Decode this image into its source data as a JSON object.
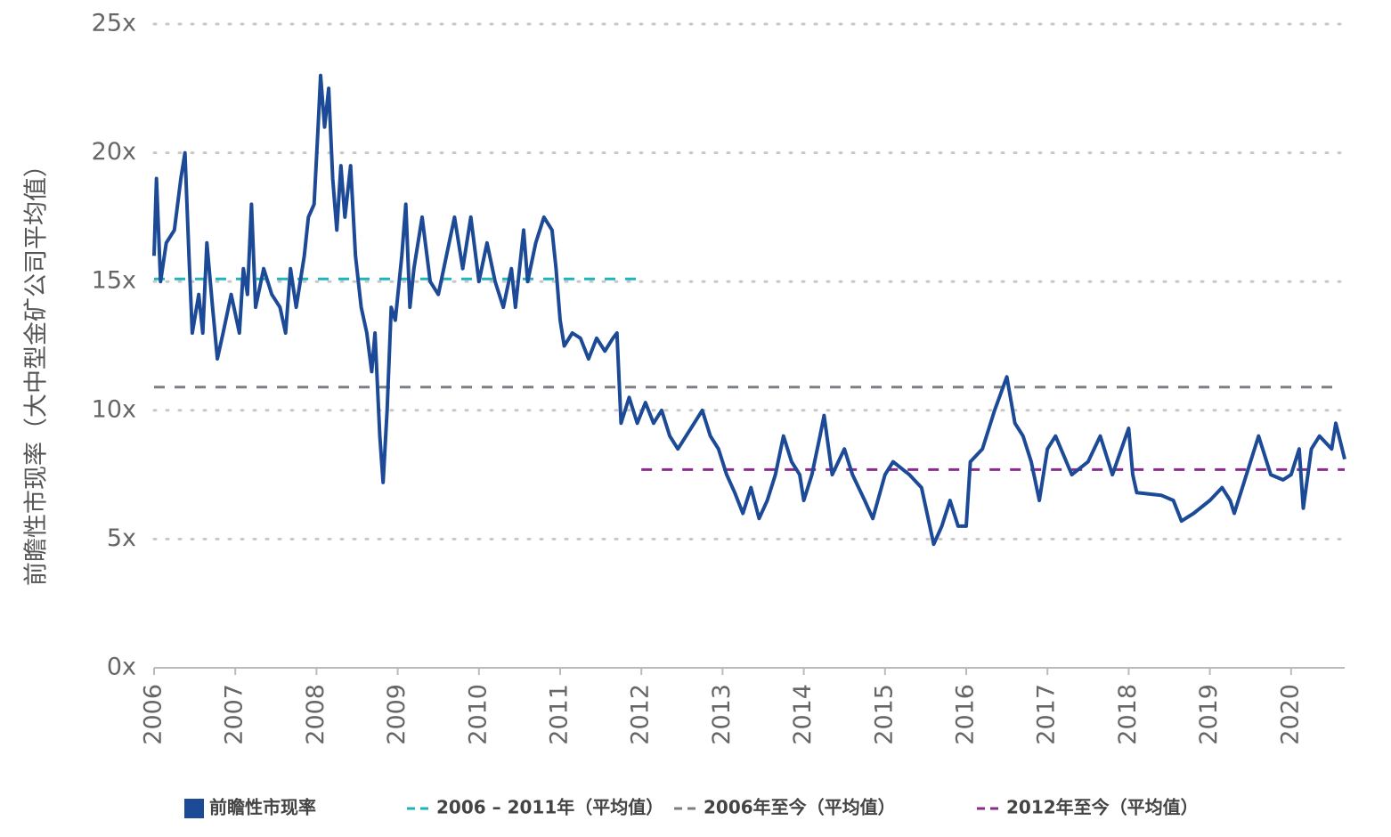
{
  "chart_data": {
    "type": "line",
    "y_label": "前瞻性市现率（大中型金矿公司平均值）",
    "xlim": [
      2006,
      2020.66
    ],
    "xticks": [
      2006,
      2007,
      2008,
      2009,
      2010,
      2011,
      2012,
      2013,
      2014,
      2015,
      2016,
      2017,
      2018,
      2019,
      2020
    ],
    "ylim": [
      0,
      25
    ],
    "yticks": [
      {
        "value": 0,
        "label": "0x"
      },
      {
        "value": 5,
        "label": "5x"
      },
      {
        "value": 10,
        "label": "10x"
      },
      {
        "value": 15,
        "label": "15x"
      },
      {
        "value": 20,
        "label": "20x"
      },
      {
        "value": 25,
        "label": "25x"
      }
    ],
    "grid": true,
    "legend": "bottom",
    "series": [
      {
        "name": "前瞻性市现率",
        "color": "#1d4a96",
        "x": [
          2006.0,
          2006.03,
          2006.08,
          2006.15,
          2006.25,
          2006.33,
          2006.38,
          2006.43,
          2006.47,
          2006.55,
          2006.6,
          2006.65,
          2006.72,
          2006.78,
          2006.85,
          2006.95,
          2007.05,
          2007.1,
          2007.15,
          2007.2,
          2007.25,
          2007.35,
          2007.45,
          2007.55,
          2007.62,
          2007.68,
          2007.75,
          2007.85,
          2007.9,
          2007.97,
          2008.02,
          2008.05,
          2008.1,
          2008.15,
          2008.2,
          2008.25,
          2008.3,
          2008.35,
          2008.42,
          2008.48,
          2008.55,
          2008.62,
          2008.68,
          2008.72,
          2008.78,
          2008.82,
          2008.87,
          2008.92,
          2008.97,
          2009.05,
          2009.1,
          2009.15,
          2009.2,
          2009.3,
          2009.4,
          2009.5,
          2009.6,
          2009.7,
          2009.8,
          2009.9,
          2010.0,
          2010.1,
          2010.2,
          2010.3,
          2010.4,
          2010.45,
          2010.55,
          2010.6,
          2010.7,
          2010.8,
          2010.9,
          2010.95,
          2011.0,
          2011.05,
          2011.15,
          2011.25,
          2011.35,
          2011.45,
          2011.55,
          2011.65,
          2011.7,
          2011.75,
          2011.85,
          2011.95,
          2012.05,
          2012.15,
          2012.25,
          2012.35,
          2012.45,
          2012.55,
          2012.65,
          2012.75,
          2012.85,
          2012.95,
          2013.05,
          2013.15,
          2013.25,
          2013.35,
          2013.45,
          2013.55,
          2013.65,
          2013.75,
          2013.85,
          2013.95,
          2014.0,
          2014.1,
          2014.2,
          2014.25,
          2014.35,
          2014.5,
          2014.6,
          2014.75,
          2014.85,
          2015.0,
          2015.1,
          2015.3,
          2015.45,
          2015.6,
          2015.7,
          2015.8,
          2015.9,
          2016.0,
          2016.05,
          2016.2,
          2016.35,
          2016.5,
          2016.6,
          2016.7,
          2016.8,
          2016.9,
          2017.0,
          2017.1,
          2017.3,
          2017.5,
          2017.65,
          2017.8,
          2018.0,
          2018.05,
          2018.1,
          2018.4,
          2018.55,
          2018.65,
          2018.8,
          2019.0,
          2019.15,
          2019.25,
          2019.3,
          2019.4,
          2019.5,
          2019.6,
          2019.75,
          2019.9,
          2020.0,
          2020.1,
          2020.15,
          2020.25,
          2020.35,
          2020.5,
          2020.55,
          2020.66
        ],
        "values": [
          16,
          19,
          15,
          16.5,
          17,
          19,
          20,
          16,
          13,
          14.5,
          13,
          16.5,
          14,
          12,
          13,
          14.5,
          13,
          15.5,
          14.5,
          18,
          14,
          15.5,
          14.5,
          14,
          13,
          15.5,
          14,
          16,
          17.5,
          18,
          21,
          23,
          21,
          22.5,
          19,
          17,
          19.5,
          17.5,
          19.5,
          16,
          14,
          13,
          11.5,
          13,
          9,
          7.2,
          10,
          14,
          13.5,
          16,
          18,
          14,
          15.5,
          17.5,
          15,
          14.5,
          16,
          17.5,
          15.5,
          17.5,
          15,
          16.5,
          15,
          14,
          15.5,
          14,
          17,
          15,
          16.5,
          17.5,
          17,
          15.5,
          13.5,
          12.5,
          13,
          12.8,
          12,
          12.8,
          12.3,
          12.8,
          13,
          9.5,
          10.5,
          9.5,
          10.3,
          9.5,
          10,
          9,
          8.5,
          9,
          9.5,
          10,
          9,
          8.5,
          7.5,
          6.8,
          6,
          7,
          5.8,
          6.5,
          7.5,
          9,
          8,
          7.5,
          6.5,
          7.5,
          9,
          9.8,
          7.5,
          8.5,
          7.5,
          6.5,
          5.8,
          7.5,
          8,
          7.5,
          7,
          4.8,
          5.5,
          6.5,
          5.5,
          5.5,
          8,
          8.5,
          10,
          11.3,
          9.5,
          9,
          8,
          6.5,
          8.5,
          9,
          7.5,
          8,
          9,
          7.5,
          9.3,
          7.5,
          6.8,
          6.7,
          6.5,
          5.7,
          6,
          6.5,
          7,
          6.5,
          6,
          7,
          8,
          9,
          7.5,
          7.3,
          7.5,
          8.5,
          6.2,
          8.5,
          9,
          8.5,
          9.5,
          8.1
        ]
      }
    ],
    "reference_lines": [
      {
        "name": "2006 – 2011年（平均值）",
        "color": "#1fb3bb",
        "value": 15.1,
        "x": [
          2006,
          2012
        ]
      },
      {
        "name": "2006年至今（平均值）",
        "color": "#7a7f84",
        "value": 10.9,
        "x": [
          2006,
          2020.6
        ]
      },
      {
        "name": "2012年至今（平均值）",
        "color": "#8a2c8c",
        "value": 7.7,
        "x": [
          2012,
          2020.66
        ]
      }
    ]
  }
}
